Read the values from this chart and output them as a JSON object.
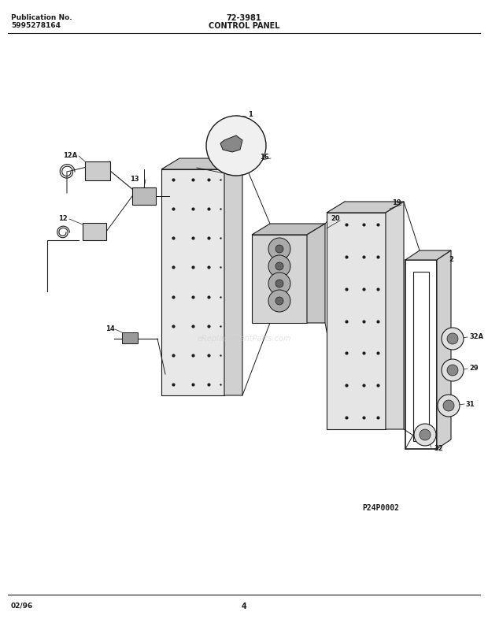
{
  "title_left_line1": "Publication No.",
  "title_left_line2": "5995278164",
  "title_center_top": "72-3981",
  "title_center_bottom": "CONTROL PANEL",
  "footer_left": "02/96",
  "footer_center": "4",
  "diagram_id": "P24P0002",
  "watermark": "eReplacementParts.com",
  "bg_color": "#ffffff",
  "line_color": "#1a1a1a",
  "gray_fill": "#d8d8d8",
  "dark_gray": "#555555"
}
